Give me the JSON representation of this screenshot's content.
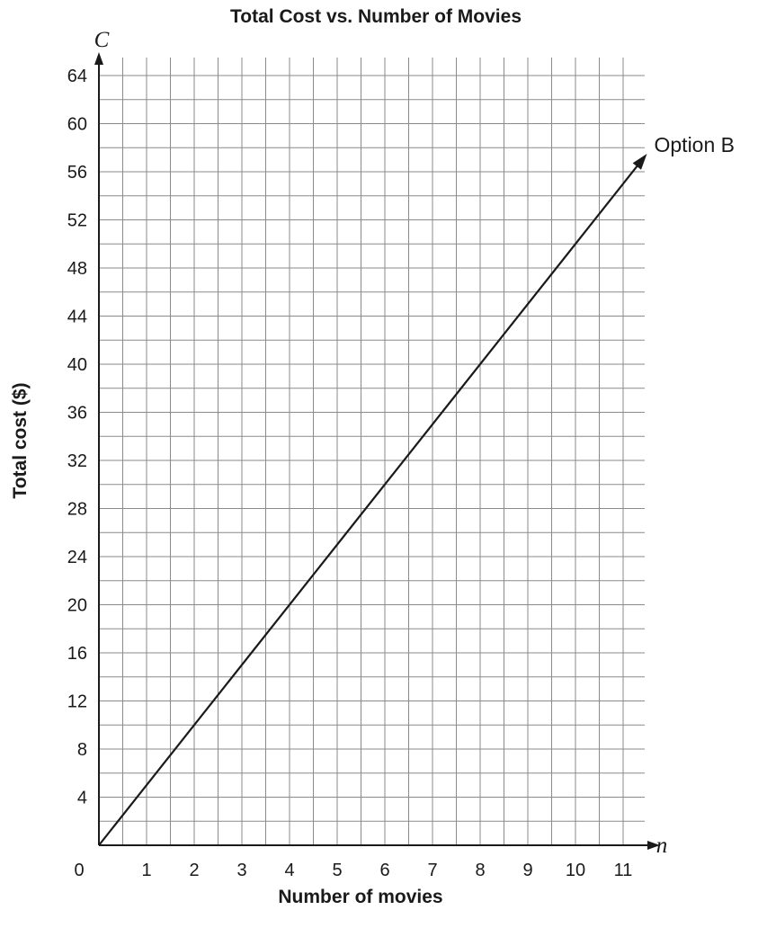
{
  "chart_data": {
    "type": "line",
    "title": "Total Cost vs. Number of Movies",
    "xlabel": "Number of movies",
    "ylabel": "Total cost ($)",
    "x_variable": "n",
    "y_variable": "C",
    "xlim": [
      0,
      11.5
    ],
    "ylim": [
      0,
      66
    ],
    "x_ticks": [
      "0",
      "1",
      "2",
      "3",
      "4",
      "5",
      "6",
      "7",
      "8",
      "9",
      "10",
      "11"
    ],
    "y_ticks": [
      "4",
      "8",
      "12",
      "16",
      "20",
      "24",
      "28",
      "32",
      "36",
      "40",
      "44",
      "48",
      "52",
      "56",
      "60",
      "64"
    ],
    "grid": true,
    "series": [
      {
        "name": "Option B",
        "x": [
          0,
          11.5
        ],
        "y": [
          0,
          57.5
        ],
        "arrow_end": true,
        "color": "#1a1a1a"
      }
    ]
  }
}
